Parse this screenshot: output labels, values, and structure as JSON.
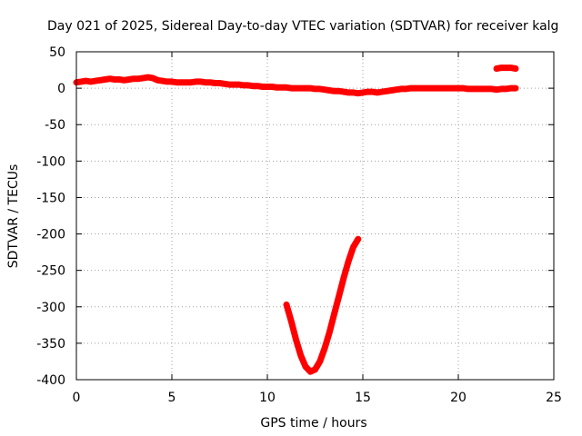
{
  "chart_data": {
    "type": "scatter",
    "title": "Day 021 of 2025, Sidereal Day-to-day VTEC variation (SDTVAR) for receiver kalg",
    "xlabel": "GPS time / hours",
    "ylabel": "SDTVAR / TECUs",
    "xlim": [
      0,
      25
    ],
    "ylim": [
      -400,
      50
    ],
    "xticks": [
      0,
      5,
      10,
      15,
      20,
      25
    ],
    "yticks": [
      50,
      0,
      -50,
      -100,
      -150,
      -200,
      -250,
      -300,
      -350,
      -400
    ],
    "grid": true,
    "series_color": "#ff0000",
    "series": [
      {
        "x": [
          0.0,
          0.25,
          0.5,
          0.75,
          1.0,
          1.25,
          1.5,
          1.75,
          2.0,
          2.25,
          2.5,
          2.75,
          3.0,
          3.25,
          3.5,
          3.75,
          4.0,
          4.25,
          4.5,
          4.75,
          5.0,
          5.25,
          5.5,
          5.75,
          6.0,
          6.25,
          6.5,
          6.75,
          7.0,
          7.25,
          7.5,
          7.75,
          8.0,
          8.25,
          8.5,
          8.75,
          9.0,
          9.25,
          9.5,
          9.75,
          10.0,
          10.25,
          10.5,
          10.75,
          11.0,
          11.25,
          11.5,
          11.75,
          12.0,
          12.25,
          12.5,
          12.75,
          13.0,
          13.25,
          13.5,
          13.75,
          14.0,
          14.25,
          14.5,
          14.75,
          15.0,
          15.25,
          15.5,
          15.75,
          16.0,
          16.25,
          16.5,
          16.75,
          17.0,
          17.25,
          17.5,
          17.75,
          18.0,
          18.25,
          18.5,
          18.75,
          19.0,
          19.25,
          19.5,
          19.75,
          20.0,
          20.25,
          20.5,
          20.75,
          21.0,
          21.25,
          21.5,
          21.75,
          22.0,
          22.25,
          22.5,
          22.75,
          23.0
        ],
        "y": [
          8,
          9,
          10,
          9,
          10,
          11,
          12,
          13,
          12,
          12,
          11,
          12,
          13,
          13,
          14,
          15,
          14,
          11,
          10,
          9,
          9,
          8,
          8,
          8,
          8,
          9,
          9,
          8,
          8,
          7,
          7,
          6,
          5,
          5,
          5,
          4,
          4,
          3,
          3,
          2,
          2,
          2,
          1,
          1,
          1,
          0,
          0,
          0,
          0,
          0,
          -1,
          -1,
          -2,
          -3,
          -4,
          -4,
          -5,
          -6,
          -6,
          -7,
          -6,
          -5,
          -5,
          -6,
          -5,
          -4,
          -3,
          -2,
          -1,
          -1,
          0,
          0,
          0,
          0,
          0,
          0,
          0,
          0,
          0,
          0,
          0,
          0,
          -1,
          -1,
          -1,
          -1,
          -1,
          -1,
          -2,
          -1,
          -1,
          0,
          0
        ]
      },
      {
        "x": [
          11.0,
          11.25,
          11.5,
          11.75,
          12.0,
          12.25,
          12.5,
          12.75,
          13.0,
          13.25,
          13.5,
          13.75,
          14.0,
          14.25,
          14.5,
          14.75
        ],
        "y": [
          -297,
          -320,
          -345,
          -367,
          -382,
          -389,
          -386,
          -375,
          -357,
          -335,
          -310,
          -285,
          -260,
          -237,
          -218,
          -207
        ]
      },
      {
        "x": [
          22.0,
          22.25,
          22.5,
          22.75,
          23.0
        ],
        "y": [
          27,
          28,
          28,
          28,
          27
        ]
      }
    ]
  }
}
